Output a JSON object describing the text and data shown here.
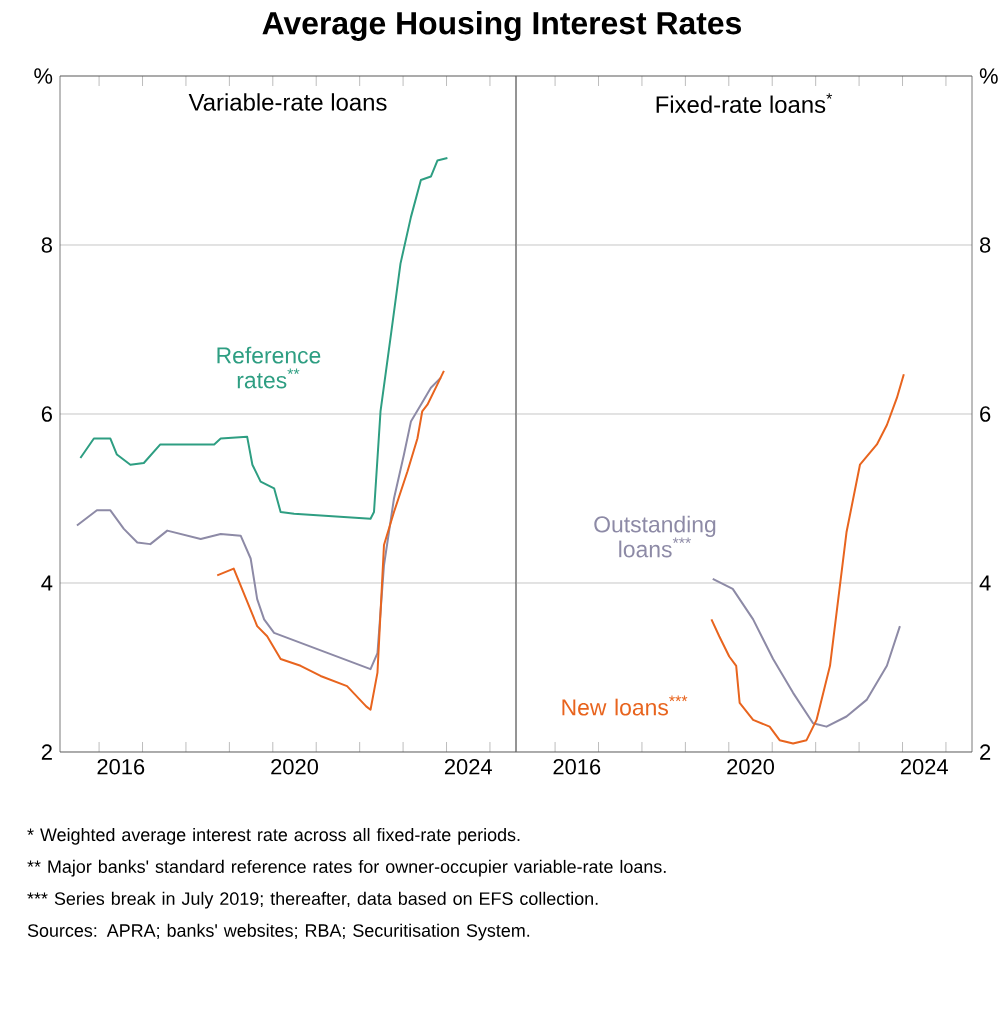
{
  "chart_data": [
    {
      "type": "line",
      "title": "Average Housing Interest Rates",
      "subtitle": "Variable-rate loans",
      "xlim": [
        2015.1,
        2025.6
      ],
      "ylim": [
        2,
        10
      ],
      "xticks": [
        {
          "value": 2016,
          "label": null
        },
        {
          "value": 2017,
          "label": null
        },
        {
          "value": 2018,
          "label": null
        },
        {
          "value": 2019,
          "label": null
        },
        {
          "value": 2020,
          "label": null
        },
        {
          "value": 2021,
          "label": null
        },
        {
          "value": 2022,
          "label": null
        },
        {
          "value": 2023,
          "label": null
        },
        {
          "value": 2024,
          "label": null
        },
        {
          "value": 2025,
          "label": null
        },
        {
          "value": 2016.5,
          "label": "2016"
        },
        {
          "value": 2020.5,
          "label": "2020"
        },
        {
          "value": 2024.5,
          "label": "2024"
        }
      ],
      "yticks": [
        2,
        4,
        6,
        8,
        {
          "value": 10,
          "label": "%"
        }
      ],
      "grid": "y",
      "series": [
        {
          "name": "Reference rates$^{**}$",
          "color": "#2e9e82",
          "x": [
            2015.57,
            2015.88,
            2016.26,
            2016.41,
            2016.72,
            2017.03,
            2017.41,
            2018.65,
            2018.8,
            2019.41,
            2019.53,
            2019.72,
            2020.03,
            2020.18,
            2020.49,
            2022.25,
            2022.33,
            2022.48,
            2022.71,
            2022.94,
            2023.18,
            2023.41,
            2023.64,
            2023.79,
            2024.02
          ],
          "values": [
            5.48,
            5.71,
            5.71,
            5.52,
            5.4,
            5.42,
            5.64,
            5.64,
            5.71,
            5.73,
            5.4,
            5.2,
            5.12,
            4.84,
            4.82,
            4.76,
            4.84,
            6.03,
            6.9,
            7.78,
            8.33,
            8.77,
            8.81,
            9.0,
            9.03
          ]
        },
        {
          "color": "#8d8aa6",
          "x": [
            2015.49,
            2015.95,
            2016.26,
            2016.57,
            2016.88,
            2017.18,
            2017.57,
            2018.34,
            2018.8,
            2019.26,
            2019.49,
            2019.64,
            2019.8,
            2020.03,
            2022.25,
            2022.41,
            2022.56,
            2022.79,
            2023.02,
            2023.18,
            2023.41,
            2023.64,
            2023.87
          ],
          "values": [
            4.68,
            4.86,
            4.86,
            4.64,
            4.48,
            4.46,
            4.62,
            4.52,
            4.58,
            4.56,
            4.29,
            3.81,
            3.57,
            3.41,
            2.98,
            3.17,
            4.21,
            5.0,
            5.52,
            5.91,
            6.11,
            6.31,
            6.43
          ]
        },
        {
          "color": "#e8641e",
          "x": [
            2018.72,
            2019.1,
            2019.64,
            2019.87,
            2020.18,
            2020.64,
            2021.1,
            2021.71,
            2022.15,
            2022.25,
            2022.41,
            2022.56,
            2022.79,
            2023.1,
            2023.33,
            2023.44,
            2023.56,
            2023.79,
            2023.94
          ],
          "values": [
            4.09,
            4.17,
            3.49,
            3.37,
            3.1,
            3.02,
            2.9,
            2.78,
            2.54,
            2.5,
            2.94,
            4.45,
            4.84,
            5.32,
            5.71,
            6.03,
            6.11,
            6.35,
            6.51
          ]
        }
      ],
      "annotations": [
        "* Weighted average interest rate across all fixed-rate periods.",
        "** Major banks' standard reference rates for owner-occupier variable-rate loans.",
        "*** Series break in July 2019; thereafter, data based on EFS collection.",
        "Sources: APRA; banks' websites; RBA; Securitisation System."
      ]
    },
    {
      "type": "line",
      "subtitle": "Fixed-rate loans$^{*}$",
      "xlim": [
        2015.1,
        2025.6
      ],
      "ylim": [
        2,
        10
      ],
      "xticks": [
        {
          "value": 2016,
          "label": null
        },
        {
          "value": 2017,
          "label": null
        },
        {
          "value": 2018,
          "label": null
        },
        {
          "value": 2019,
          "label": null
        },
        {
          "value": 2020,
          "label": null
        },
        {
          "value": 2021,
          "label": null
        },
        {
          "value": 2022,
          "label": null
        },
        {
          "value": 2023,
          "label": null
        },
        {
          "value": 2024,
          "label": null
        },
        {
          "value": 2025,
          "label": null
        },
        {
          "value": 2016.5,
          "label": "2016"
        },
        {
          "value": 2020.5,
          "label": "2020"
        },
        {
          "value": 2024.5,
          "label": "2024"
        }
      ],
      "yticks": [
        2,
        4,
        6,
        8,
        {
          "value": 10,
          "label": "%"
        }
      ],
      "grid": "y",
      "series": [
        {
          "name": "Outstanding loans$^{***}$",
          "color": "#8d8aa6",
          "x": [
            2019.63,
            2020.09,
            2020.56,
            2021.02,
            2021.48,
            2021.94,
            2022.25,
            2022.71,
            2023.18,
            2023.64,
            2023.94
          ],
          "values": [
            4.05,
            3.93,
            3.57,
            3.1,
            2.7,
            2.34,
            2.3,
            2.42,
            2.62,
            3.02,
            3.49
          ]
        },
        {
          "name": "New loans$^{***}$",
          "color": "#e8641e",
          "x": [
            2019.6,
            2019.78,
            2020.01,
            2020.17,
            2020.25,
            2020.56,
            2020.94,
            2021.17,
            2021.48,
            2021.79,
            2022.02,
            2022.33,
            2022.71,
            2023.02,
            2023.41,
            2023.64,
            2023.87,
            2024.03
          ],
          "values": [
            3.57,
            3.37,
            3.13,
            3.02,
            2.58,
            2.38,
            2.3,
            2.14,
            2.1,
            2.14,
            2.38,
            3.02,
            4.6,
            5.4,
            5.64,
            5.87,
            6.19,
            6.47
          ]
        }
      ]
    }
  ]
}
